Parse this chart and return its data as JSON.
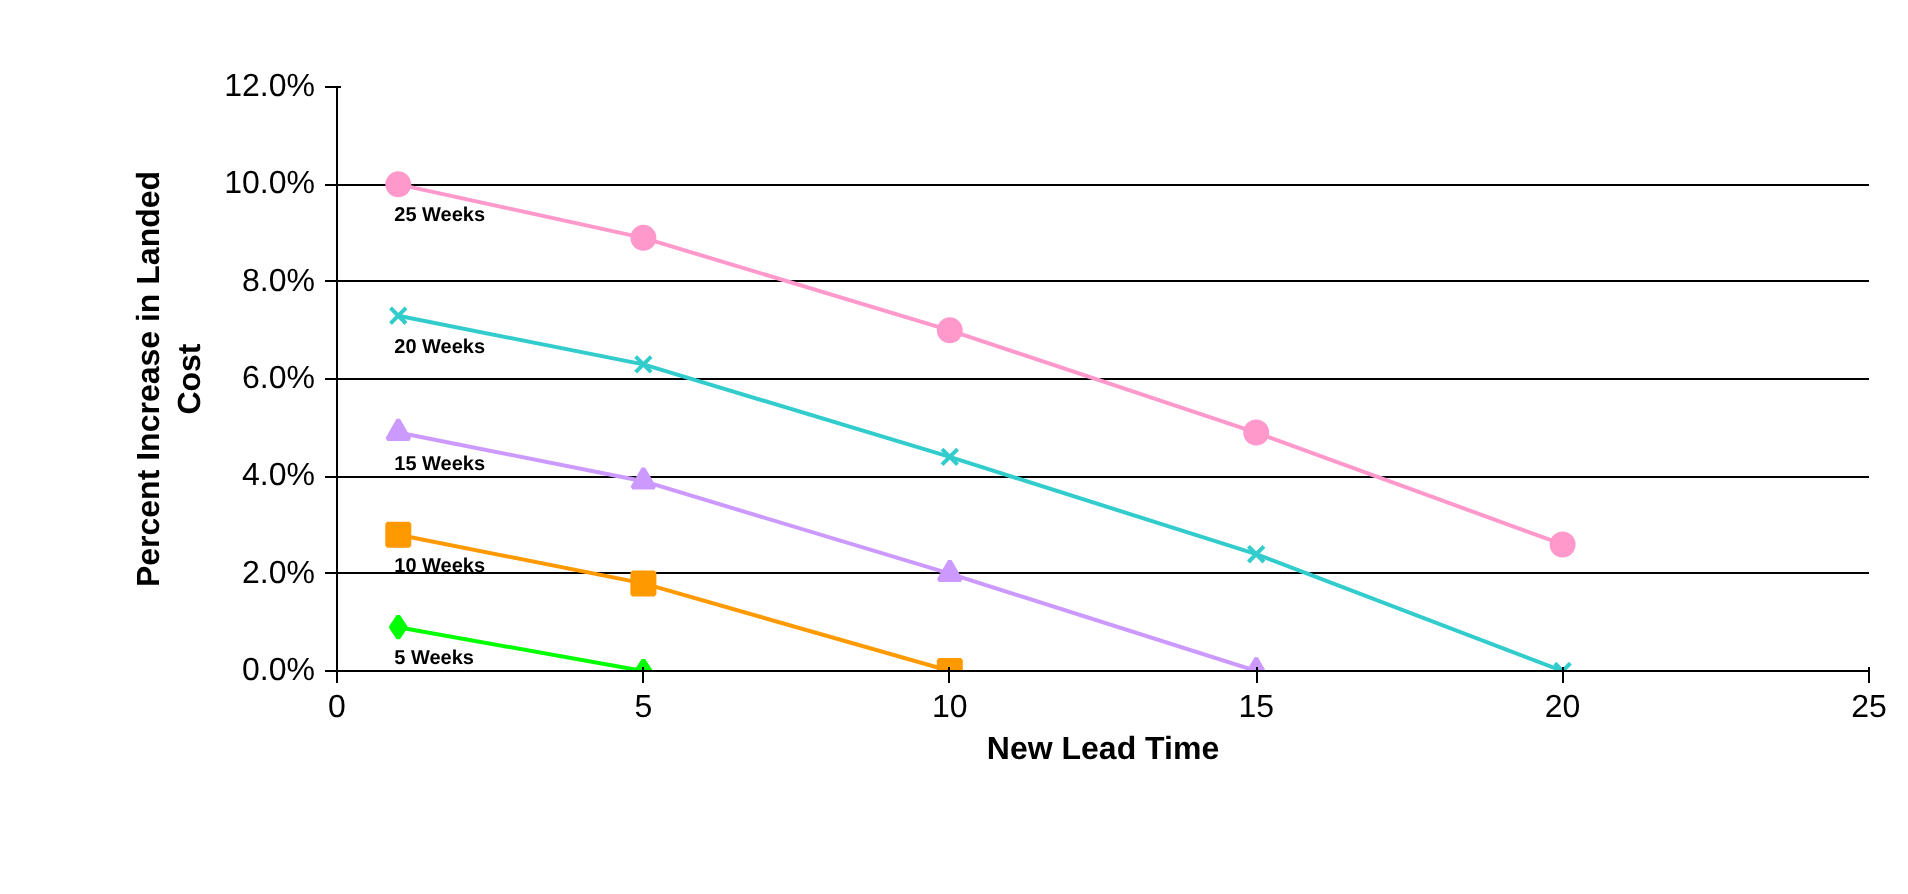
{
  "chart_data": {
    "type": "line",
    "xlabel": "New Lead Time",
    "ylabel": "Percent Increase in Landed Cost",
    "xlim": [
      0,
      25
    ],
    "xticks": [
      0,
      5,
      10,
      15,
      20,
      25
    ],
    "ylim": [
      0,
      12
    ],
    "yticks": [
      {
        "value": 0,
        "label": "0.0%"
      },
      {
        "value": 2,
        "label": "2.0%"
      },
      {
        "value": 4,
        "label": "4.0%"
      },
      {
        "value": 6,
        "label": "6.0%"
      },
      {
        "value": 8,
        "label": "8.0%"
      },
      {
        "value": 10,
        "label": "10.0%"
      },
      {
        "value": 12,
        "label": "12.0%"
      }
    ],
    "grid": "y",
    "legend": false,
    "series": [
      {
        "name": "25 Weeks",
        "color": "#ff99cc",
        "marker": "circle",
        "x": [
          1,
          5,
          10,
          15,
          20
        ],
        "values": [
          10.0,
          8.9,
          7.0,
          4.9,
          2.6
        ]
      },
      {
        "name": "20 Weeks",
        "color": "#33cccc",
        "marker": "cross",
        "x": [
          1,
          5,
          10,
          15,
          20
        ],
        "values": [
          7.3,
          6.3,
          4.4,
          2.4,
          0
        ]
      },
      {
        "name": "15 Weeks",
        "color": "#cc99ff",
        "marker": "triangle",
        "x": [
          1,
          5,
          10,
          15
        ],
        "values": [
          4.9,
          3.9,
          2.0,
          0
        ]
      },
      {
        "name": "10 Weeks",
        "color": "#ff9900",
        "marker": "square",
        "x": [
          1,
          5,
          10
        ],
        "values": [
          2.8,
          1.8,
          0
        ]
      },
      {
        "name": "5 Weeks",
        "color": "#00ff00",
        "marker": "diamond",
        "x": [
          1,
          5
        ],
        "values": [
          0.9,
          0
        ]
      }
    ]
  }
}
